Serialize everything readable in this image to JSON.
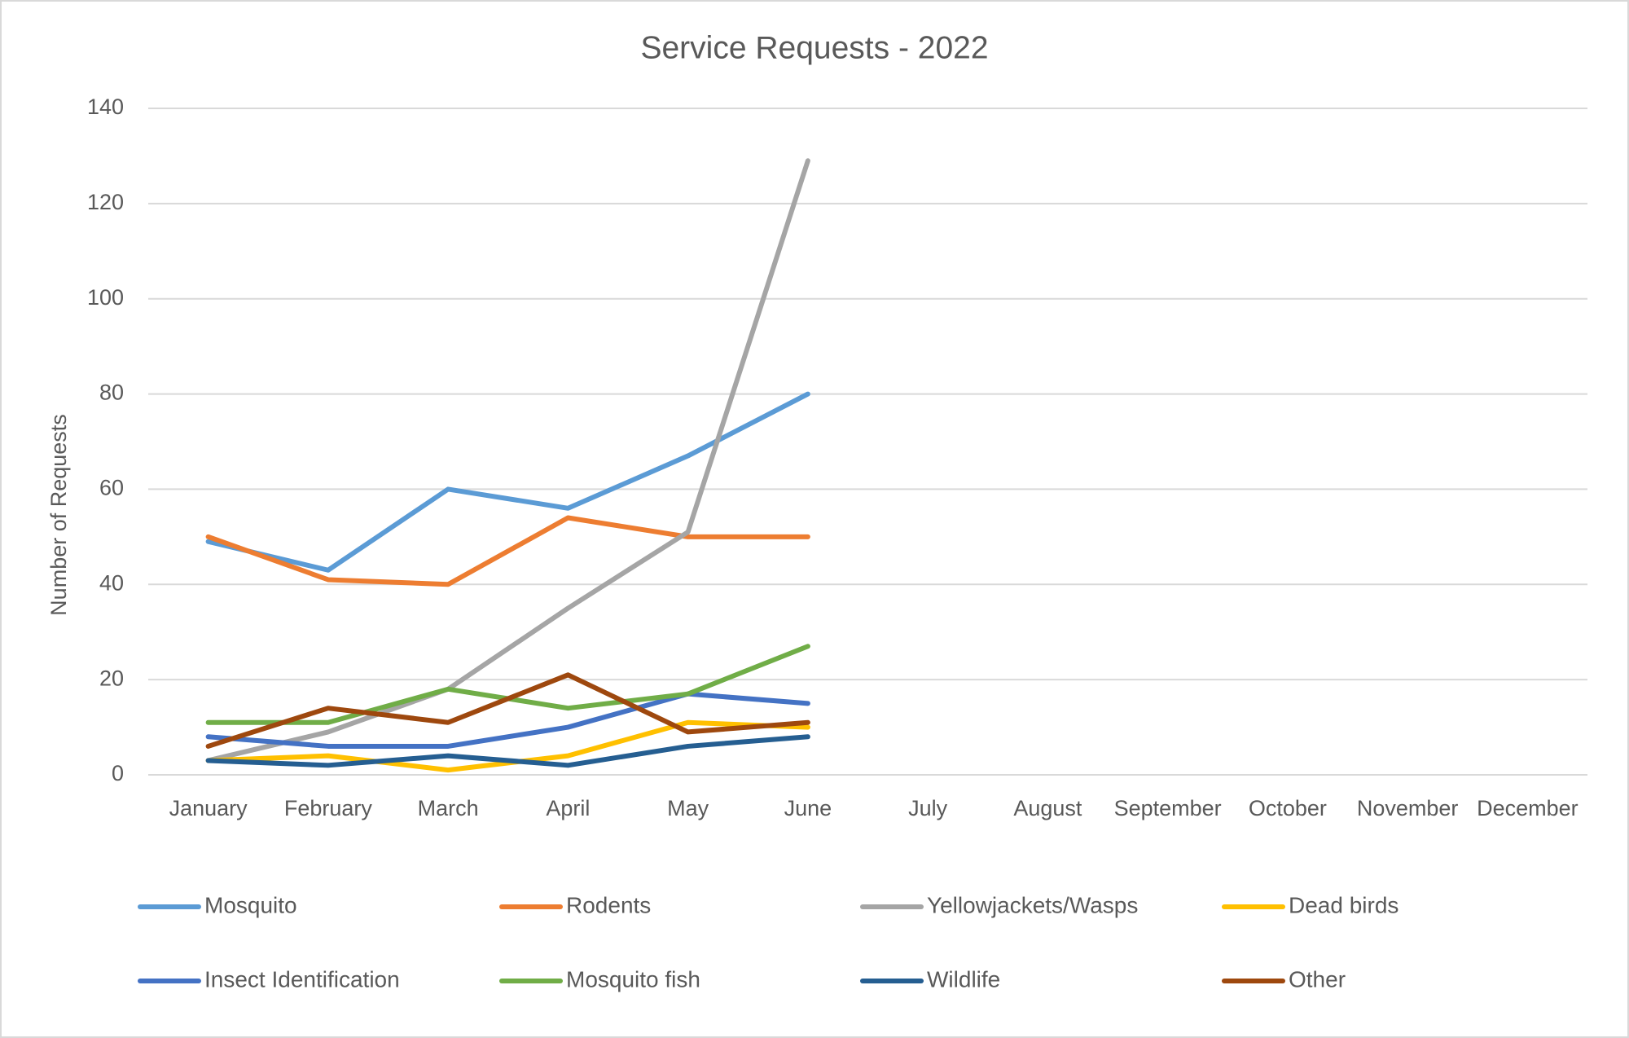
{
  "chart_data": {
    "type": "line",
    "title": "Service Requests - 2022",
    "y_label": "Number of Requests",
    "categories": [
      "January",
      "February",
      "March",
      "April",
      "May",
      "June",
      "July",
      "August",
      "September",
      "October",
      "November",
      "December"
    ],
    "series": [
      {
        "name": "Mosquito",
        "color": "#5b9bd5",
        "values": [
          49,
          43,
          60,
          56,
          67,
          80,
          null,
          null,
          null,
          null,
          null,
          null
        ]
      },
      {
        "name": "Rodents",
        "color": "#ed7d31",
        "values": [
          50,
          41,
          40,
          54,
          50,
          50,
          null,
          null,
          null,
          null,
          null,
          null
        ]
      },
      {
        "name": "Yellowjackets/Wasps",
        "color": "#a5a5a5",
        "values": [
          3,
          9,
          18,
          35,
          51,
          129,
          null,
          null,
          null,
          null,
          null,
          null
        ]
      },
      {
        "name": "Dead birds",
        "color": "#ffc000",
        "values": [
          3,
          4,
          1,
          4,
          11,
          10,
          null,
          null,
          null,
          null,
          null,
          null
        ]
      },
      {
        "name": "Insect Identification",
        "color": "#4472c4",
        "values": [
          8,
          6,
          6,
          10,
          17,
          15,
          null,
          null,
          null,
          null,
          null,
          null
        ]
      },
      {
        "name": "Mosquito fish",
        "color": "#70ad47",
        "values": [
          11,
          11,
          18,
          14,
          17,
          27,
          null,
          null,
          null,
          null,
          null,
          null
        ]
      },
      {
        "name": "Wildlife",
        "color": "#255e91",
        "values": [
          3,
          2,
          4,
          2,
          6,
          8,
          null,
          null,
          null,
          null,
          null,
          null
        ]
      },
      {
        "name": "Other",
        "color": "#9e480e",
        "values": [
          6,
          14,
          11,
          21,
          9,
          11,
          null,
          null,
          null,
          null,
          null,
          null
        ]
      }
    ],
    "ylim": [
      0,
      140
    ],
    "yticks": [
      0,
      20,
      40,
      60,
      80,
      100,
      120,
      140
    ],
    "grid": true,
    "legend": "bottom"
  }
}
